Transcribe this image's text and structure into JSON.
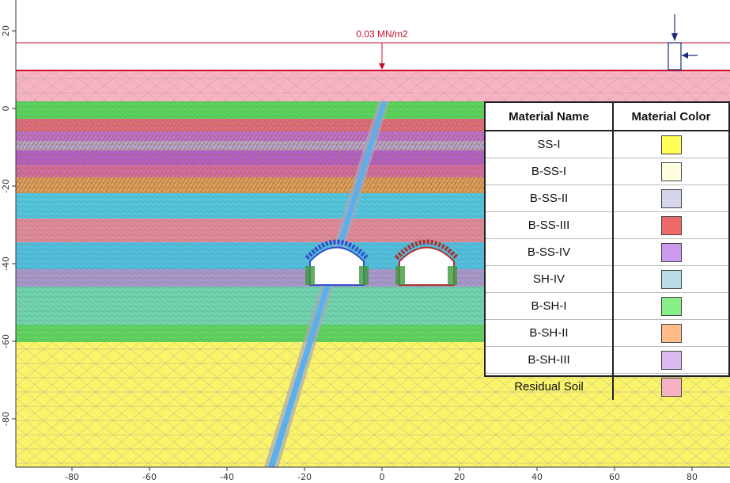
{
  "load": {
    "label": "0.03 MN/m2"
  },
  "axes": {
    "x_ticks": [
      -80,
      -60,
      -40,
      -20,
      0,
      20,
      40,
      60,
      80
    ],
    "y_ticks": [
      20,
      0,
      -20,
      -40,
      -60,
      -80
    ]
  },
  "legend": {
    "header_name": "Material Name",
    "header_color": "Material Color",
    "items": [
      {
        "name": "SS-I",
        "color": "#ffff55"
      },
      {
        "name": "B-SS-I",
        "color": "#ffffe0"
      },
      {
        "name": "B-SS-II",
        "color": "#d6d6ea"
      },
      {
        "name": "B-SS-III",
        "color": "#ee6a6a"
      },
      {
        "name": "B-SS-IV",
        "color": "#cc99ee"
      },
      {
        "name": "SH-IV",
        "color": "#b8dde8"
      },
      {
        "name": "B-SH-I",
        "color": "#88ee88"
      },
      {
        "name": "B-SH-II",
        "color": "#ffbb88"
      },
      {
        "name": "B-SH-III",
        "color": "#ddbbee"
      },
      {
        "name": "Residual Soil",
        "color": "#f7b3c2"
      }
    ]
  }
}
